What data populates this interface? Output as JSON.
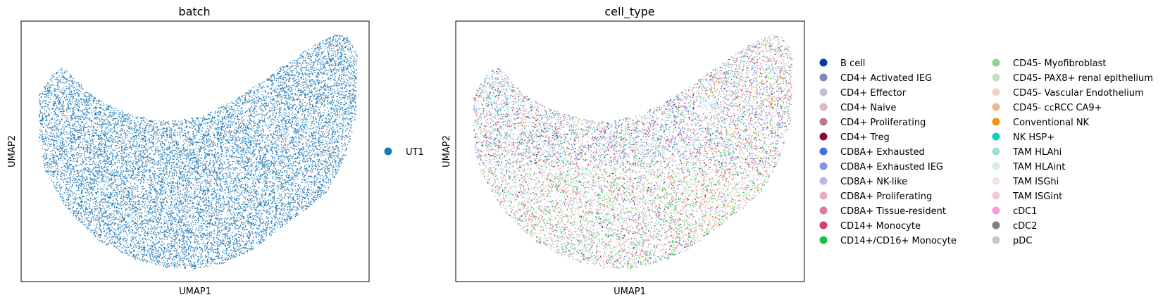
{
  "chart_data": [
    {
      "type": "scatter",
      "title": "batch",
      "xlabel": "UMAP1",
      "ylabel": "UMAP2",
      "grid": false,
      "ticks": false,
      "legend_placement": "right",
      "point_count_approx": 20000,
      "series": [
        {
          "name": "UT1",
          "color": "#1f77b4",
          "share": 1.0
        }
      ]
    },
    {
      "type": "scatter",
      "title": "cell_type",
      "xlabel": "UMAP1",
      "ylabel": "UMAP2",
      "grid": false,
      "ticks": false,
      "legend_placement": "right",
      "legend_columns": 2,
      "point_count_approx": 20000,
      "series": [
        {
          "name": "B cell",
          "color": "#023fa5",
          "region": "mixed"
        },
        {
          "name": "CD4+ Activated IEG",
          "color": "#7d87b9",
          "region": "upper"
        },
        {
          "name": "CD4+ Effector",
          "color": "#bec1d4",
          "region": "upper"
        },
        {
          "name": "CD4+ Naive",
          "color": "#d6bcc0",
          "region": "lower"
        },
        {
          "name": "CD4+ Proliferating",
          "color": "#bb7784",
          "region": "mixed"
        },
        {
          "name": "CD4+ Treg",
          "color": "#8e063b",
          "region": "upper"
        },
        {
          "name": "CD8A+ Exhausted",
          "color": "#4a6fe3",
          "region": "upper"
        },
        {
          "name": "CD8A+ Exhausted IEG",
          "color": "#8595e1",
          "region": "upper"
        },
        {
          "name": "CD8A+ NK-like",
          "color": "#b5bbe3",
          "region": "upper"
        },
        {
          "name": "CD8A+ Proliferating",
          "color": "#e6afb9",
          "region": "lower"
        },
        {
          "name": "CD8A+ Tissue-resident",
          "color": "#e07b91",
          "region": "mixed"
        },
        {
          "name": "CD14+ Monocyte",
          "color": "#d33f6a",
          "region": "mixed"
        },
        {
          "name": "CD14+/CD16+ Monocyte",
          "color": "#11c638",
          "region": "lower"
        },
        {
          "name": "CD45- Myofibroblast",
          "color": "#8dd593",
          "region": "lower"
        },
        {
          "name": "CD45- PAX8+ renal epithelium",
          "color": "#c6dec7",
          "region": "lower"
        },
        {
          "name": "CD45- Vascular Endothelium",
          "color": "#ead3c6",
          "region": "lower"
        },
        {
          "name": "CD45- ccRCC CA9+",
          "color": "#f0b98d",
          "region": "right"
        },
        {
          "name": "Conventional NK",
          "color": "#ef9708",
          "region": "right"
        },
        {
          "name": "NK HSP+",
          "color": "#0fcfc0",
          "region": "upper"
        },
        {
          "name": "TAM HLAhi",
          "color": "#9cded6",
          "region": "upper"
        },
        {
          "name": "TAM HLAint",
          "color": "#d5eae7",
          "region": "mixed"
        },
        {
          "name": "TAM ISGhi",
          "color": "#f3e1eb",
          "region": "lower"
        },
        {
          "name": "TAM ISGint",
          "color": "#f6c4e1",
          "region": "lower"
        },
        {
          "name": "cDC1",
          "color": "#f79cd4",
          "region": "mixed"
        },
        {
          "name": "cDC2",
          "color": "#7f7f7f",
          "region": "mixed"
        },
        {
          "name": "pDC",
          "color": "#c7c7c7",
          "region": "mixed"
        }
      ]
    }
  ]
}
